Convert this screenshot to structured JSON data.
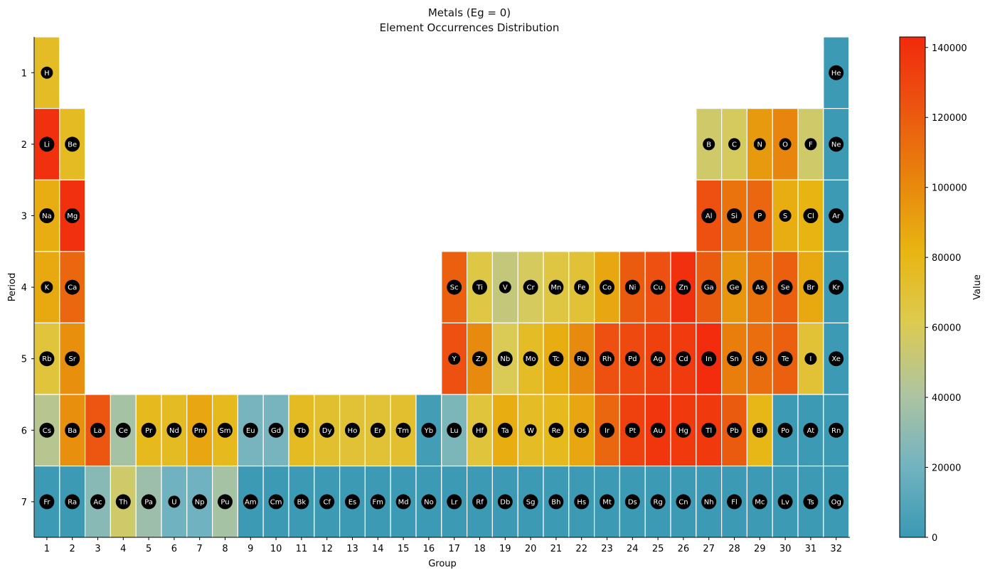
{
  "chart_data": {
    "type": "heatmap",
    "title": "Metals (Eg = 0)",
    "subtitle": "Element Occurrences Distribution",
    "xlabel": "Group",
    "ylabel": "Period",
    "colorbar_label": "Value",
    "x_ticks": [
      "1",
      "2",
      "3",
      "4",
      "5",
      "6",
      "7",
      "8",
      "9",
      "10",
      "11",
      "12",
      "13",
      "14",
      "15",
      "16",
      "17",
      "18",
      "19",
      "20",
      "21",
      "22",
      "23",
      "24",
      "25",
      "26",
      "27",
      "28",
      "29",
      "30",
      "31",
      "32"
    ],
    "y_ticks": [
      "1",
      "2",
      "3",
      "4",
      "5",
      "6",
      "7"
    ],
    "colorbar": {
      "min": 0,
      "max": 143000,
      "ticks": [
        "0",
        "20000",
        "40000",
        "60000",
        "80000",
        "100000",
        "120000",
        "140000"
      ],
      "colors": [
        "#3a99b3",
        "#72b3c0",
        "#aec4a0",
        "#dccb50",
        "#e8b512",
        "#e8850c",
        "#ec5510",
        "#f22a0c"
      ]
    },
    "rows": [
      {
        "period": 1,
        "elements": [
          {
            "symbol": "H",
            "group": 1,
            "value": 75000
          },
          {
            "symbol": "He",
            "group": 32,
            "value": 1000
          }
        ]
      },
      {
        "period": 2,
        "elements": [
          {
            "symbol": "Li",
            "group": 1,
            "value": 140000
          },
          {
            "symbol": "Be",
            "group": 2,
            "value": 76000
          },
          {
            "symbol": "B",
            "group": 27,
            "value": 55000
          },
          {
            "symbol": "C",
            "group": 28,
            "value": 58000
          },
          {
            "symbol": "N",
            "group": 29,
            "value": 93000
          },
          {
            "symbol": "O",
            "group": 30,
            "value": 102000
          },
          {
            "symbol": "F",
            "group": 31,
            "value": 55000
          },
          {
            "symbol": "Ne",
            "group": 32,
            "value": 1000
          }
        ]
      },
      {
        "period": 3,
        "elements": [
          {
            "symbol": "Na",
            "group": 1,
            "value": 85000
          },
          {
            "symbol": "Mg",
            "group": 2,
            "value": 140000
          },
          {
            "symbol": "Al",
            "group": 27,
            "value": 125000
          },
          {
            "symbol": "Si",
            "group": 28,
            "value": 110000
          },
          {
            "symbol": "P",
            "group": 29,
            "value": 115000
          },
          {
            "symbol": "S",
            "group": 30,
            "value": 85000
          },
          {
            "symbol": "Cl",
            "group": 31,
            "value": 82000
          },
          {
            "symbol": "Ar",
            "group": 32,
            "value": 1000
          }
        ]
      },
      {
        "period": 4,
        "elements": [
          {
            "symbol": "K",
            "group": 1,
            "value": 87000
          },
          {
            "symbol": "Ca",
            "group": 2,
            "value": 115000
          },
          {
            "symbol": "Sc",
            "group": 17,
            "value": 118000
          },
          {
            "symbol": "Ti",
            "group": 18,
            "value": 65000
          },
          {
            "symbol": "V",
            "group": 19,
            "value": 50000
          },
          {
            "symbol": "Cr",
            "group": 20,
            "value": 58000
          },
          {
            "symbol": "Mn",
            "group": 21,
            "value": 66000
          },
          {
            "symbol": "Fe",
            "group": 22,
            "value": 70000
          },
          {
            "symbol": "Co",
            "group": 23,
            "value": 88000
          },
          {
            "symbol": "Ni",
            "group": 24,
            "value": 120000
          },
          {
            "symbol": "Cu",
            "group": 25,
            "value": 125000
          },
          {
            "symbol": "Zn",
            "group": 26,
            "value": 140000
          },
          {
            "symbol": "Ga",
            "group": 27,
            "value": 120000
          },
          {
            "symbol": "Ge",
            "group": 28,
            "value": 95000
          },
          {
            "symbol": "As",
            "group": 29,
            "value": 110000
          },
          {
            "symbol": "Se",
            "group": 30,
            "value": 118000
          },
          {
            "symbol": "Br",
            "group": 31,
            "value": 87000
          },
          {
            "symbol": "Kr",
            "group": 32,
            "value": 1000
          }
        ]
      },
      {
        "period": 5,
        "elements": [
          {
            "symbol": "Rb",
            "group": 1,
            "value": 68000
          },
          {
            "symbol": "Sr",
            "group": 2,
            "value": 98000
          },
          {
            "symbol": "Y",
            "group": 17,
            "value": 125000
          },
          {
            "symbol": "Zr",
            "group": 18,
            "value": 100000
          },
          {
            "symbol": "Nb",
            "group": 19,
            "value": 60000
          },
          {
            "symbol": "Mo",
            "group": 20,
            "value": 75000
          },
          {
            "symbol": "Tc",
            "group": 21,
            "value": 85000
          },
          {
            "symbol": "Ru",
            "group": 22,
            "value": 100000
          },
          {
            "symbol": "Rh",
            "group": 23,
            "value": 125000
          },
          {
            "symbol": "Pd",
            "group": 24,
            "value": 128000
          },
          {
            "symbol": "Ag",
            "group": 25,
            "value": 132000
          },
          {
            "symbol": "Cd",
            "group": 26,
            "value": 135000
          },
          {
            "symbol": "In",
            "group": 27,
            "value": 142000
          },
          {
            "symbol": "Sn",
            "group": 28,
            "value": 105000
          },
          {
            "symbol": "Sb",
            "group": 29,
            "value": 112000
          },
          {
            "symbol": "Te",
            "group": 30,
            "value": 118000
          },
          {
            "symbol": "I",
            "group": 31,
            "value": 70000
          },
          {
            "symbol": "Xe",
            "group": 32,
            "value": 1000
          }
        ]
      },
      {
        "period": 6,
        "elements": [
          {
            "symbol": "Cs",
            "group": 1,
            "value": 45000
          },
          {
            "symbol": "Ba",
            "group": 2,
            "value": 98000
          },
          {
            "symbol": "La",
            "group": 3,
            "value": 122000
          },
          {
            "symbol": "Ce",
            "group": 4,
            "value": 38000
          },
          {
            "symbol": "Pr",
            "group": 5,
            "value": 78000
          },
          {
            "symbol": "Nd",
            "group": 6,
            "value": 76000
          },
          {
            "symbol": "Pm",
            "group": 7,
            "value": 88000
          },
          {
            "symbol": "Sm",
            "group": 8,
            "value": 78000
          },
          {
            "symbol": "Eu",
            "group": 9,
            "value": 22000
          },
          {
            "symbol": "Gd",
            "group": 10,
            "value": 22000
          },
          {
            "symbol": "Tb",
            "group": 11,
            "value": 76000
          },
          {
            "symbol": "Dy",
            "group": 12,
            "value": 72000
          },
          {
            "symbol": "Ho",
            "group": 13,
            "value": 70000
          },
          {
            "symbol": "Er",
            "group": 14,
            "value": 70000
          },
          {
            "symbol": "Tm",
            "group": 15,
            "value": 72000
          },
          {
            "symbol": "Yb",
            "group": 16,
            "value": 3000
          },
          {
            "symbol": "Lu",
            "group": 17,
            "value": 24000
          },
          {
            "symbol": "Hf",
            "group": 18,
            "value": 68000
          },
          {
            "symbol": "Ta",
            "group": 19,
            "value": 85000
          },
          {
            "symbol": "W",
            "group": 20,
            "value": 75000
          },
          {
            "symbol": "Re",
            "group": 21,
            "value": 78000
          },
          {
            "symbol": "Os",
            "group": 22,
            "value": 88000
          },
          {
            "symbol": "Ir",
            "group": 23,
            "value": 115000
          },
          {
            "symbol": "Pt",
            "group": 24,
            "value": 132000
          },
          {
            "symbol": "Au",
            "group": 25,
            "value": 138000
          },
          {
            "symbol": "Hg",
            "group": 26,
            "value": 136000
          },
          {
            "symbol": "Tl",
            "group": 27,
            "value": 136000
          },
          {
            "symbol": "Pb",
            "group": 28,
            "value": 120000
          },
          {
            "symbol": "Bi",
            "group": 29,
            "value": 80000
          },
          {
            "symbol": "Po",
            "group": 30,
            "value": 1000
          },
          {
            "symbol": "At",
            "group": 31,
            "value": 1000
          },
          {
            "symbol": "Rn",
            "group": 32,
            "value": 1000
          }
        ]
      },
      {
        "period": 7,
        "elements": [
          {
            "symbol": "Fr",
            "group": 1,
            "value": 1000
          },
          {
            "symbol": "Ra",
            "group": 2,
            "value": 1000
          },
          {
            "symbol": "Ac",
            "group": 3,
            "value": 28000
          },
          {
            "symbol": "Th",
            "group": 4,
            "value": 55000
          },
          {
            "symbol": "Pa",
            "group": 5,
            "value": 35000
          },
          {
            "symbol": "U",
            "group": 6,
            "value": 20000
          },
          {
            "symbol": "Np",
            "group": 7,
            "value": 20000
          },
          {
            "symbol": "Pu",
            "group": 8,
            "value": 38000
          },
          {
            "symbol": "Am",
            "group": 9,
            "value": 1000
          },
          {
            "symbol": "Cm",
            "group": 10,
            "value": 1000
          },
          {
            "symbol": "Bk",
            "group": 11,
            "value": 1000
          },
          {
            "symbol": "Cf",
            "group": 12,
            "value": 1000
          },
          {
            "symbol": "Es",
            "group": 13,
            "value": 1000
          },
          {
            "symbol": "Fm",
            "group": 14,
            "value": 1000
          },
          {
            "symbol": "Md",
            "group": 15,
            "value": 1000
          },
          {
            "symbol": "No",
            "group": 16,
            "value": 1000
          },
          {
            "symbol": "Lr",
            "group": 17,
            "value": 1000
          },
          {
            "symbol": "Rf",
            "group": 18,
            "value": 1000
          },
          {
            "symbol": "Db",
            "group": 19,
            "value": 1000
          },
          {
            "symbol": "Sg",
            "group": 20,
            "value": 1000
          },
          {
            "symbol": "Bh",
            "group": 21,
            "value": 1000
          },
          {
            "symbol": "Hs",
            "group": 22,
            "value": 1000
          },
          {
            "symbol": "Mt",
            "group": 23,
            "value": 1000
          },
          {
            "symbol": "Ds",
            "group": 24,
            "value": 1000
          },
          {
            "symbol": "Rg",
            "group": 25,
            "value": 1000
          },
          {
            "symbol": "Cn",
            "group": 26,
            "value": 1000
          },
          {
            "symbol": "Nh",
            "group": 27,
            "value": 1000
          },
          {
            "symbol": "Fl",
            "group": 28,
            "value": 1000
          },
          {
            "symbol": "Mc",
            "group": 29,
            "value": 1000
          },
          {
            "symbol": "Lv",
            "group": 30,
            "value": 1000
          },
          {
            "symbol": "Ts",
            "group": 31,
            "value": 1000
          },
          {
            "symbol": "Og",
            "group": 32,
            "value": 1000
          }
        ]
      }
    ]
  }
}
